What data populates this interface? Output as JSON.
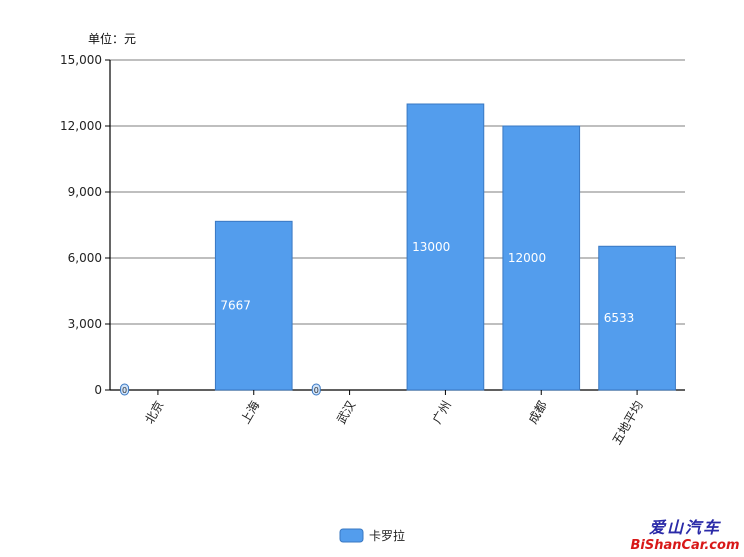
{
  "chart_data": {
    "type": "bar",
    "unit_label": "单位：元",
    "categories": [
      "北京",
      "上海",
      "武汉",
      "广州",
      "成都",
      "五地平均"
    ],
    "series": [
      {
        "name": "卡罗拉",
        "values": [
          0,
          7667,
          0,
          13000,
          12000,
          6533
        ],
        "color": "#539ded"
      }
    ],
    "data_labels": [
      "0",
      "7667",
      "0",
      "13000",
      "12000",
      "6533"
    ],
    "yticks": [
      "0",
      "3,000",
      "6,000",
      "9,000",
      "12,000",
      "15,000"
    ],
    "ylim": [
      0,
      15000
    ],
    "grid": true,
    "legend_position": "bottom-center"
  },
  "watermark": {
    "text_cn": "爱山汽车",
    "text_en": "BiShanCar.com"
  }
}
